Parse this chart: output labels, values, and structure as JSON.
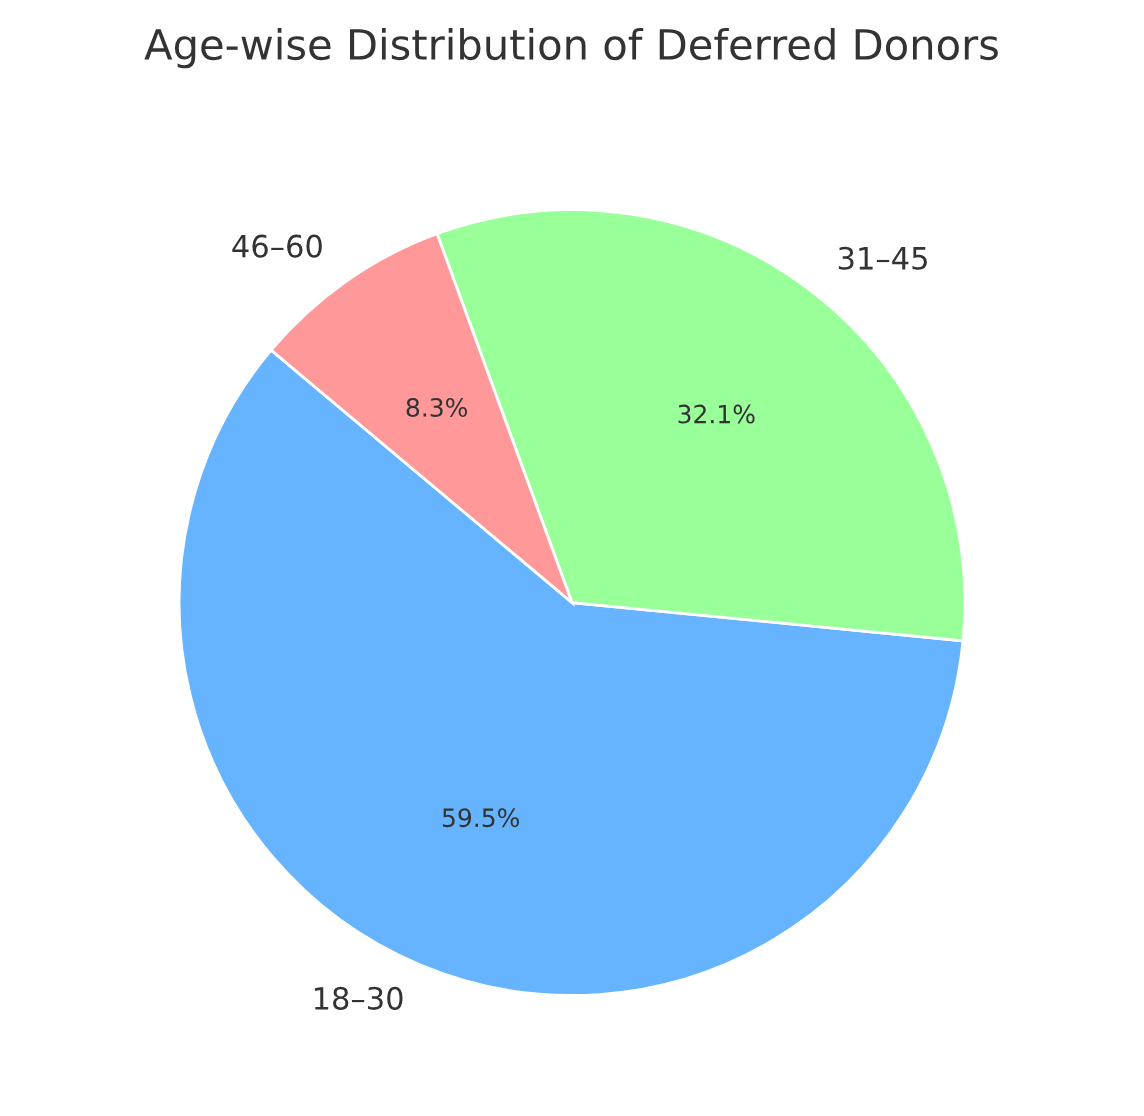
{
  "chart_data": {
    "type": "pie",
    "title": "Age-wise Distribution of Deferred Donors",
    "categories": [
      "18–30",
      "31–45",
      "46–60"
    ],
    "values": [
      59.5,
      32.1,
      8.3
    ],
    "colors": [
      "#66b3ff",
      "#99ff99",
      "#ff9999"
    ],
    "value_labels": [
      "59.5%",
      "32.1%",
      "8.3%"
    ]
  }
}
